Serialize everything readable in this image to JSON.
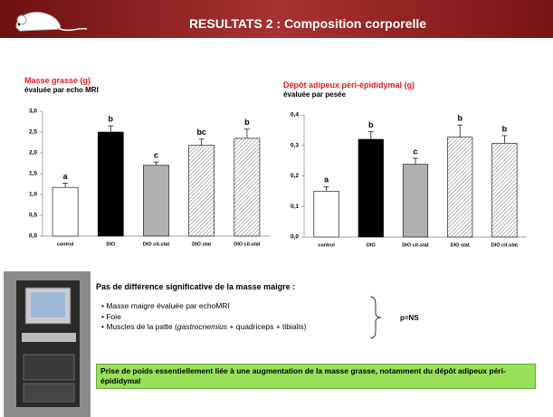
{
  "header": {
    "title": "RESULTATS 2 : Composition corporelle"
  },
  "chart_data": [
    {
      "type": "bar",
      "title": "Masse grasse (g)",
      "subtitle": "évaluée par echo MRI",
      "categories": [
        "control",
        "DIO",
        "DIO cit-stat",
        "DIO stat",
        "DIO cit-stat"
      ],
      "values": [
        1.17,
        2.5,
        1.7,
        2.18,
        2.35
      ],
      "errors": [
        0.1,
        0.15,
        0.08,
        0.15,
        0.22
      ],
      "annotations": [
        "a",
        "b",
        "c",
        "bc",
        "b"
      ],
      "colors": [
        "#ffffff",
        "#000000",
        "#b0b0b0",
        "#d8d8d8",
        "#d8d8d8"
      ],
      "hatch": [
        false,
        false,
        false,
        true,
        true
      ],
      "ylim": [
        0,
        3
      ],
      "yticks": [
        {
          "value": 0,
          "label": "0,0"
        },
        {
          "value": 0.5,
          "label": "0,5"
        },
        {
          "value": 1,
          "label": "1,0"
        },
        {
          "value": 1.5,
          "label": "1,5"
        },
        {
          "value": 2,
          "label": "2,0"
        },
        {
          "value": 2.5,
          "label": "2,5"
        },
        {
          "value": 3,
          "label": "3,0"
        }
      ]
    },
    {
      "type": "bar",
      "title": "Dépôt adipeux péri-épididymal (g)",
      "subtitle": "évaluée par pesée",
      "categories": [
        "control",
        "DIO",
        "DIO cit-stat",
        "DIO stat",
        "DIO cit-stat"
      ],
      "values": [
        0.15,
        0.32,
        0.238,
        0.327,
        0.307
      ],
      "errors": [
        0.015,
        0.025,
        0.02,
        0.04,
        0.025
      ],
      "annotations": [
        "a",
        "b",
        "c",
        "b",
        "b"
      ],
      "colors": [
        "#ffffff",
        "#000000",
        "#b0b0b0",
        "#d8d8d8",
        "#d8d8d8"
      ],
      "hatch": [
        false,
        false,
        false,
        true,
        true
      ],
      "ylim": [
        0,
        0.4
      ],
      "yticks": [
        {
          "value": 0,
          "label": "0,0"
        },
        {
          "value": 0.1,
          "label": "0,1"
        },
        {
          "value": 0.2,
          "label": "0,2"
        },
        {
          "value": 0.3,
          "label": "0,3"
        },
        {
          "value": 0.4,
          "label": "0,4"
        }
      ]
    }
  ],
  "lean": {
    "title": "Pas de différence significative de la masse maigre :",
    "items": [
      [
        "Masse maigre évaluée par echoMRI"
      ],
      [
        "Foie"
      ],
      [
        "Muscles de la patte (",
        "gastrocnemius",
        " + quadriceps + tibialis)"
      ]
    ],
    "result": "p=NS"
  },
  "conclusion": "Prise de poids essentiellement liée à une augmentation de la masse grasse, notamment du dépôt adipeux péri-épididymal"
}
